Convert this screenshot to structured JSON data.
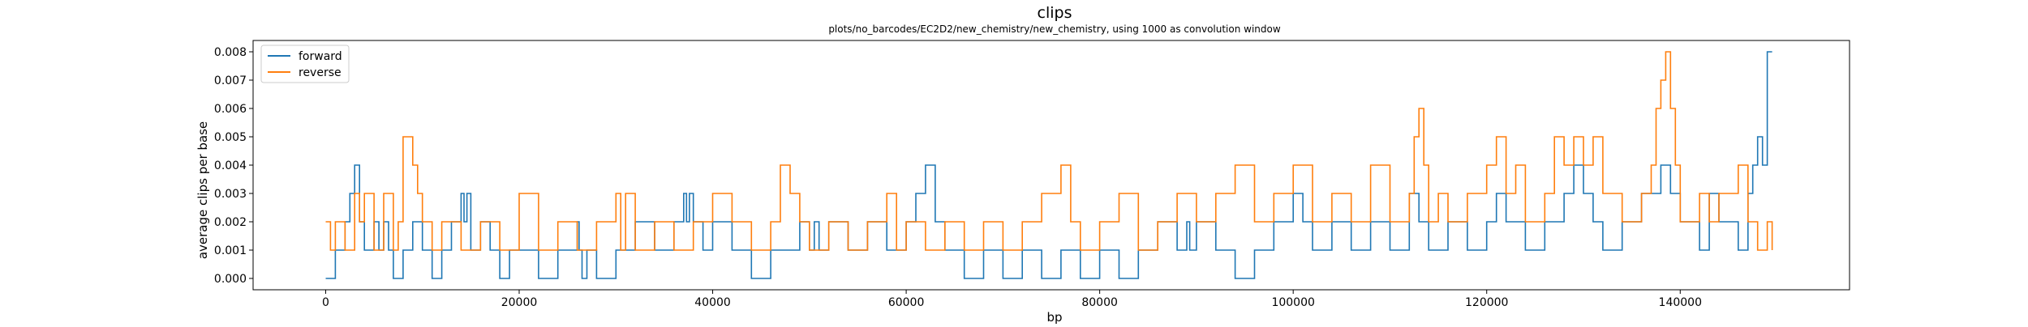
{
  "chart_data": {
    "type": "line",
    "title": "clips",
    "subtitle": "plots/no_barcodes/EC2D2/new_chemistry/new_chemistry, using 1000 as convolution window",
    "xlabel": "bp",
    "ylabel": "average clips per base",
    "xlim": [
      -7500,
      157500
    ],
    "ylim": [
      -0.0004,
      0.0084
    ],
    "x_ticks": [
      0,
      20000,
      40000,
      60000,
      80000,
      100000,
      120000,
      140000
    ],
    "x_tick_labels": [
      "0",
      "20000",
      "40000",
      "60000",
      "80000",
      "100000",
      "120000",
      "140000"
    ],
    "y_ticks": [
      0,
      0.001,
      0.002,
      0.003,
      0.004,
      0.005,
      0.006,
      0.007,
      0.008
    ],
    "y_tick_labels": [
      "0.000",
      "0.001",
      "0.002",
      "0.003",
      "0.004",
      "0.005",
      "0.006",
      "0.007",
      "0.008"
    ],
    "grid": false,
    "legend_position": "top-left",
    "series": [
      {
        "name": "forward",
        "color": "#1f77b4",
        "x": [
          0,
          1000,
          2000,
          2500,
          3000,
          3500,
          4000,
          5000,
          5500,
          6000,
          6500,
          7000,
          8000,
          9000,
          10000,
          11000,
          12000,
          13000,
          14000,
          14300,
          14600,
          15000,
          16000,
          17000,
          18000,
          19000,
          20000,
          22000,
          24000,
          26000,
          26200,
          26500,
          27000,
          28000,
          30000,
          32000,
          34000,
          36000,
          37000,
          37300,
          37600,
          38000,
          39000,
          40000,
          42000,
          44000,
          46000,
          48000,
          49000,
          50000,
          50500,
          51000,
          52000,
          54000,
          56000,
          58000,
          60000,
          61000,
          62000,
          63000,
          64000,
          66000,
          68000,
          70000,
          72000,
          74000,
          76000,
          78000,
          80000,
          82000,
          84000,
          86000,
          88000,
          89000,
          89300,
          90000,
          92000,
          94000,
          96000,
          98000,
          100000,
          101000,
          102000,
          104000,
          106000,
          108000,
          110000,
          112000,
          113000,
          114000,
          116000,
          118000,
          120000,
          121000,
          122000,
          124000,
          126000,
          128000,
          129000,
          130000,
          131000,
          132000,
          134000,
          136000,
          138000,
          139000,
          140000,
          142000,
          143000,
          144000,
          146000,
          147000,
          147500,
          148000,
          148500,
          149000,
          149500
        ],
        "values": [
          0,
          0.001,
          0.002,
          0.003,
          0.004,
          0.002,
          0.001,
          0.002,
          0.001,
          0.002,
          0.001,
          0,
          0.001,
          0.002,
          0.001,
          0,
          0.001,
          0.002,
          0.003,
          0.002,
          0.003,
          0.001,
          0.002,
          0.001,
          0,
          0.001,
          0.001,
          0,
          0.001,
          0.002,
          0.001,
          0,
          0.001,
          0,
          0.001,
          0.002,
          0.001,
          0.002,
          0.003,
          0.002,
          0.003,
          0.002,
          0.001,
          0.002,
          0.001,
          0,
          0.001,
          0.001,
          0.002,
          0.001,
          0.002,
          0.001,
          0.002,
          0.001,
          0.002,
          0.001,
          0.002,
          0.003,
          0.004,
          0.002,
          0.001,
          0,
          0.001,
          0,
          0.001,
          0,
          0.001,
          0,
          0.001,
          0,
          0.001,
          0.002,
          0.001,
          0.002,
          0.001,
          0.002,
          0.001,
          0,
          0.001,
          0.002,
          0.003,
          0.002,
          0.001,
          0.002,
          0.001,
          0.002,
          0.001,
          0.003,
          0.002,
          0.001,
          0.002,
          0.001,
          0.002,
          0.003,
          0.002,
          0.001,
          0.002,
          0.003,
          0.004,
          0.003,
          0.002,
          0.001,
          0.002,
          0.003,
          0.004,
          0.003,
          0.002,
          0.001,
          0.003,
          0.002,
          0.001,
          0.003,
          0.004,
          0.005,
          0.004,
          0.008,
          0.008
        ]
      },
      {
        "name": "reverse",
        "color": "#ff7f0e",
        "x": [
          0,
          500,
          1000,
          2000,
          3000,
          3500,
          4000,
          5000,
          6000,
          7000,
          7500,
          8000,
          9000,
          9500,
          10000,
          11000,
          12000,
          14000,
          16000,
          18000,
          20000,
          22000,
          24000,
          26000,
          28000,
          30000,
          30500,
          31000,
          32000,
          34000,
          36000,
          38000,
          40000,
          42000,
          44000,
          46000,
          47000,
          48000,
          49000,
          50000,
          52000,
          54000,
          56000,
          58000,
          59000,
          60000,
          62000,
          64000,
          66000,
          68000,
          70000,
          72000,
          74000,
          76000,
          77000,
          78000,
          80000,
          82000,
          84000,
          86000,
          88000,
          90000,
          92000,
          94000,
          96000,
          98000,
          100000,
          102000,
          104000,
          106000,
          108000,
          110000,
          112000,
          112500,
          113000,
          113500,
          114000,
          115000,
          116000,
          118000,
          120000,
          121000,
          122000,
          123000,
          124000,
          126000,
          127000,
          128000,
          129000,
          130000,
          131000,
          132000,
          134000,
          136000,
          137000,
          137500,
          138000,
          138500,
          139000,
          139500,
          140000,
          142000,
          143000,
          144000,
          146000,
          147000,
          148000,
          149000,
          149500
        ],
        "values": [
          0.002,
          0.001,
          0.002,
          0.001,
          0.003,
          0.002,
          0.003,
          0.001,
          0.003,
          0.001,
          0.002,
          0.005,
          0.004,
          0.003,
          0.002,
          0.001,
          0.002,
          0.001,
          0.002,
          0.001,
          0.003,
          0.001,
          0.002,
          0.001,
          0.002,
          0.003,
          0.001,
          0.003,
          0.001,
          0.002,
          0.001,
          0.002,
          0.003,
          0.002,
          0.001,
          0.002,
          0.004,
          0.003,
          0.002,
          0.001,
          0.002,
          0.001,
          0.002,
          0.003,
          0.001,
          0.002,
          0.001,
          0.002,
          0.001,
          0.002,
          0.001,
          0.002,
          0.003,
          0.004,
          0.002,
          0.001,
          0.002,
          0.003,
          0.001,
          0.002,
          0.003,
          0.002,
          0.003,
          0.004,
          0.002,
          0.003,
          0.004,
          0.002,
          0.003,
          0.002,
          0.004,
          0.002,
          0.003,
          0.005,
          0.006,
          0.004,
          0.002,
          0.003,
          0.002,
          0.003,
          0.004,
          0.005,
          0.003,
          0.004,
          0.002,
          0.003,
          0.005,
          0.004,
          0.005,
          0.004,
          0.005,
          0.003,
          0.002,
          0.003,
          0.004,
          0.006,
          0.007,
          0.008,
          0.006,
          0.004,
          0.002,
          0.003,
          0.002,
          0.003,
          0.004,
          0.002,
          0.001,
          0.002,
          0.001
        ]
      }
    ]
  }
}
